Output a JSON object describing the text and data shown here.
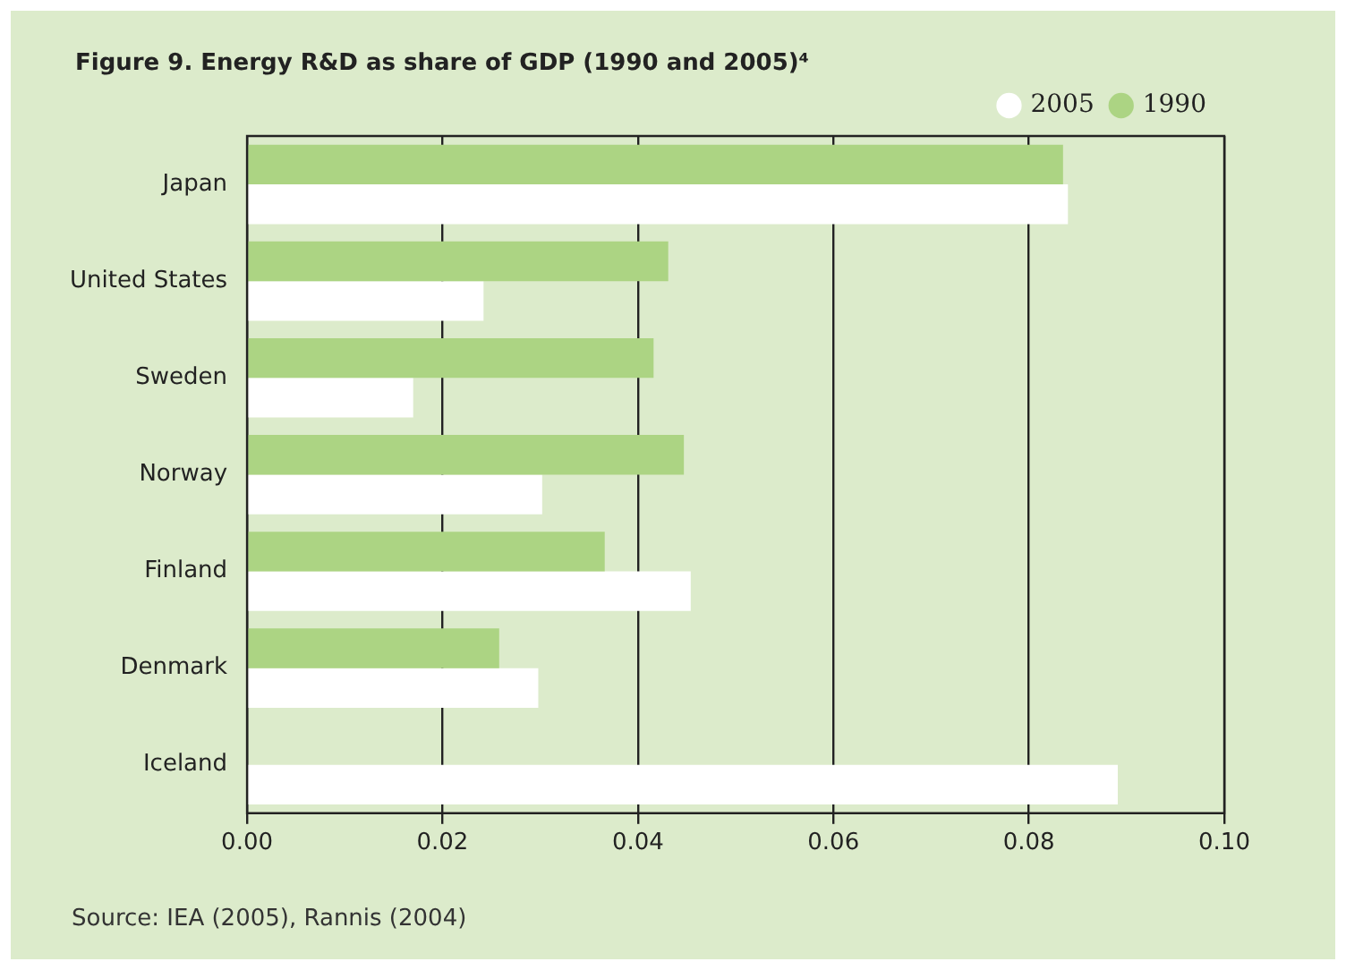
{
  "chart_data": {
    "type": "bar",
    "orientation": "horizontal",
    "title": "Figure 9. Energy R&D as share of GDP (1990 and 2005)⁴",
    "categories": [
      "Japan",
      "United States",
      "Sweden",
      "Norway",
      "Finland",
      "Denmark",
      "Iceland"
    ],
    "series": [
      {
        "name": "1990",
        "color": "#acd483",
        "values": [
          0.0835,
          0.0431,
          0.0416,
          0.0447,
          0.0366,
          0.0258,
          null
        ]
      },
      {
        "name": "2005",
        "color": "#ffffff",
        "values": [
          0.084,
          0.0242,
          0.017,
          0.0302,
          0.0454,
          0.0298,
          0.0891
        ]
      }
    ],
    "xlim": [
      0,
      0.1
    ],
    "xticks": [
      {
        "value": 0,
        "label": "0.00"
      },
      {
        "value": 0.02,
        "label": "0.02"
      },
      {
        "value": 0.04,
        "label": "0.04"
      },
      {
        "value": 0.06,
        "label": "0.06"
      },
      {
        "value": 0.08,
        "label": "0.08"
      },
      {
        "value": 0.1,
        "label": "0.10"
      }
    ],
    "grid": "x",
    "legend": "top right",
    "annotations": [
      "Source: IEA (2005), Rannis (2004)"
    ]
  }
}
